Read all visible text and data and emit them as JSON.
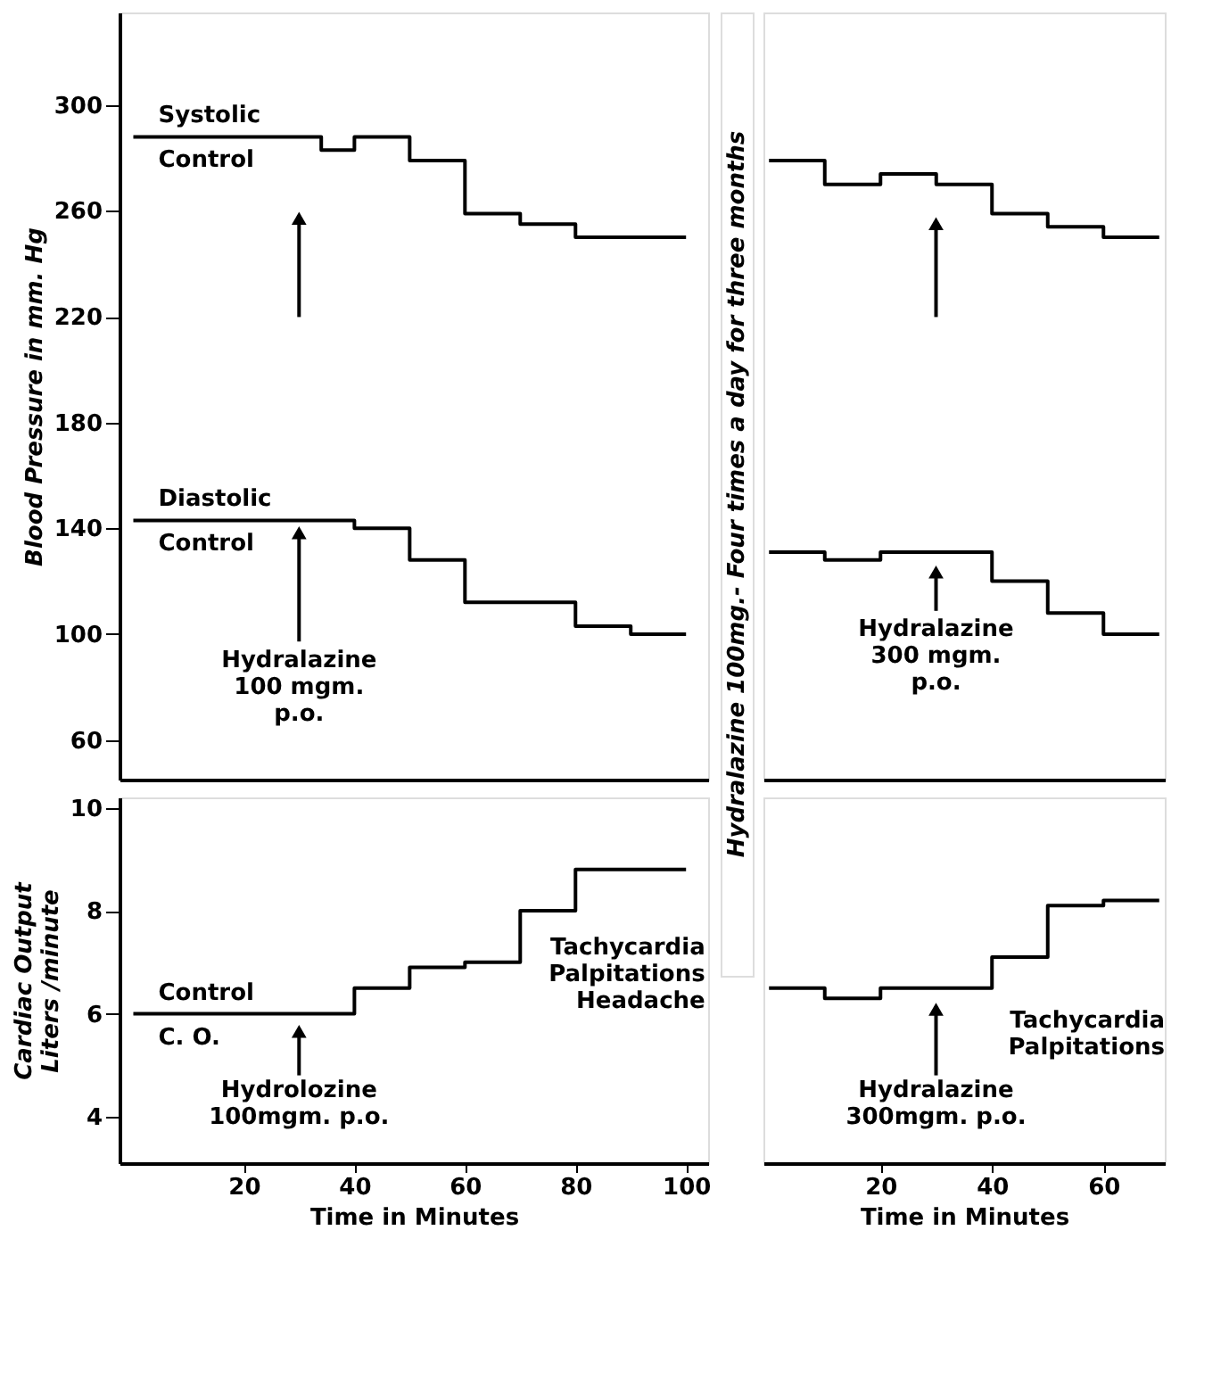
{
  "chart_data": [
    {
      "type": "step",
      "ylabel": "Blood Pressure in mm. Hg",
      "xlim": [
        -2.5,
        104
      ],
      "ylim": [
        45,
        335
      ],
      "yticks": [
        60,
        100,
        140,
        180,
        220,
        260,
        300
      ],
      "tick_labels": "y",
      "line_style": "solid",
      "series": [
        {
          "name": "Systolic\nControl",
          "color": "#000000",
          "x": [
            0,
            34,
            40,
            50,
            60,
            70,
            80,
            100
          ],
          "values": [
            288,
            283,
            288,
            279,
            259,
            255,
            250,
            250
          ]
        },
        {
          "name": "Diastolic\nControl",
          "color": "#000000",
          "x": [
            0,
            40,
            50,
            60,
            80,
            90,
            100
          ],
          "values": [
            143,
            140,
            128,
            112,
            103,
            100,
            100
          ]
        }
      ],
      "annotations": [
        "Hydralazine\n100 mgm.\np.o."
      ]
    },
    {
      "type": "other",
      "annotations": [
        "Hydralazine 100mg.- Four times a day for three months"
      ]
    },
    {
      "type": "step",
      "xlim": [
        -1,
        71
      ],
      "ylim": [
        45,
        335
      ],
      "tick_labels": false,
      "line_style": "solid",
      "series": [
        {
          "color": "#000000",
          "x": [
            0,
            10,
            20,
            30,
            40,
            50,
            60,
            70
          ],
          "values": [
            279,
            270,
            274,
            270,
            259,
            254,
            250,
            250
          ]
        },
        {
          "color": "#000000",
          "x": [
            0,
            10,
            20,
            40,
            50,
            60,
            70
          ],
          "values": [
            131,
            128,
            131,
            120,
            108,
            100,
            100
          ]
        }
      ],
      "annotations": [
        "Hydralazine\n300 mgm.\np.o."
      ]
    },
    {
      "type": "step",
      "ylabel": "Cardiac Output\nLiters /minute",
      "xlabel": "Time in Minutes",
      "xlim": [
        -2.5,
        104
      ],
      "ylim": [
        3.1,
        10.2
      ],
      "xticks": [
        20,
        40,
        60,
        80,
        100
      ],
      "yticks": [
        4,
        6,
        8,
        10
      ],
      "line_style": "solid",
      "series": [
        {
          "name": "Control\nC. O.",
          "color": "#000000",
          "x": [
            0,
            40,
            50,
            60,
            70,
            80,
            100
          ],
          "values": [
            6.0,
            6.5,
            6.9,
            7.0,
            8.0,
            8.8,
            8.8
          ]
        }
      ],
      "annotations": [
        "Hydrolozine\n100mgm. p.o.",
        "Tachycardia\nPalpitations\nHeadache"
      ]
    },
    {
      "type": "step",
      "xlabel": "Time in Minutes",
      "xlim": [
        -1,
        71
      ],
      "ylim": [
        3.1,
        10.2
      ],
      "xticks": [
        20,
        40,
        60
      ],
      "tick_labels": "x",
      "line_style": "solid",
      "series": [
        {
          "color": "#000000",
          "x": [
            0,
            10,
            20,
            40,
            50,
            60,
            70
          ],
          "values": [
            6.5,
            6.3,
            6.5,
            7.1,
            8.1,
            8.2,
            8.2
          ]
        }
      ],
      "annotations": [
        "Hydralazine\n300mgm. p.o.",
        "Tachycardia\nPalpitations"
      ]
    }
  ]
}
